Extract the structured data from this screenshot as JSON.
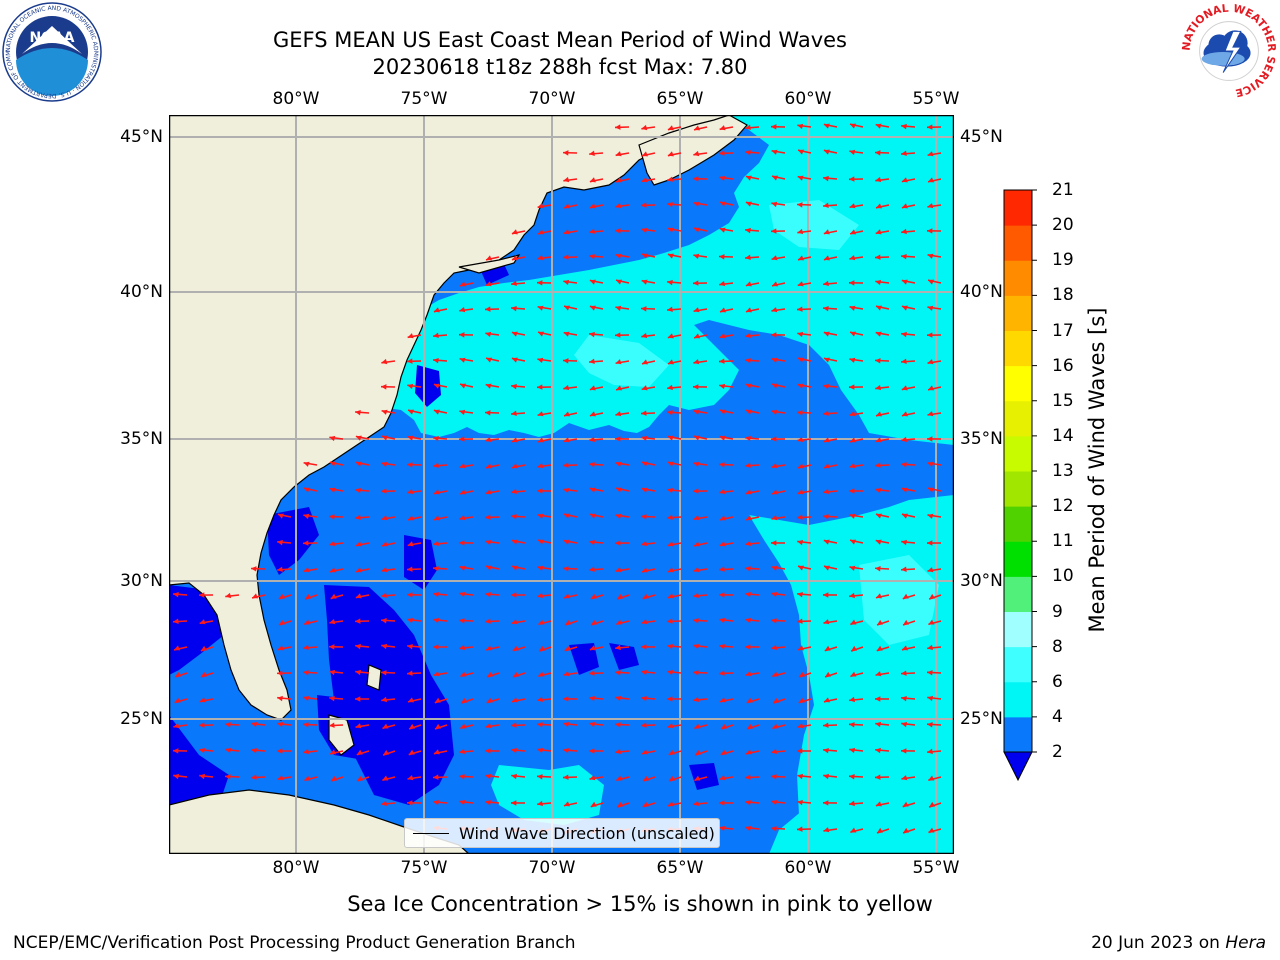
{
  "title": {
    "line1": "GEFS MEAN US East Coast Mean Period of Wind Waves",
    "line2": "20230618 t18z 288h fcst   Max: 7.80"
  },
  "logos": {
    "noaa_text": "NOAA",
    "noaa_ring": "NATIONAL OCEANIC AND ATMOSPHERIC ADMINISTRATION · U.S. DEPARTMENT OF COMMERCE",
    "nws_ring": "NATIONAL WEATHER SERVICE"
  },
  "axes": {
    "lon_labels": [
      "80°W",
      "75°W",
      "70°W",
      "65°W",
      "60°W",
      "55°W"
    ],
    "lat_labels": [
      "45°N",
      "40°N",
      "35°N",
      "30°N",
      "25°N"
    ]
  },
  "map": {
    "extent": {
      "lon": [
        -85,
        -54.5
      ],
      "lat": [
        20.3,
        46
      ]
    },
    "land_color": "#efefdc",
    "layer_colors": {
      "bin_0_2": "#0000ee",
      "bin_2_4": "#0a78fa",
      "bin_4_6": "#00f5f5",
      "bin_6_8": "#40ffff"
    },
    "arrow_color": "#ff1a1a"
  },
  "legend": {
    "label": "Wind Wave Direction (unscaled)"
  },
  "colorbar": {
    "title": "Mean Period of Wind Waves [s]",
    "ticks": [
      "2",
      "4",
      "6",
      "8",
      "9",
      "10",
      "11",
      "12",
      "13",
      "14",
      "15",
      "16",
      "17",
      "18",
      "19",
      "20",
      "21"
    ],
    "colors": [
      "#0a78fa",
      "#00f5f5",
      "#40ffff",
      "#a0ffff",
      "#50f07a",
      "#00e000",
      "#50d200",
      "#a0e600",
      "#c8fa00",
      "#e6f000",
      "#ffff00",
      "#ffd800",
      "#ffb400",
      "#ff8c00",
      "#ff5a00",
      "#ff2800",
      "#ff0000"
    ],
    "extend_color": "#0000ee"
  },
  "footnote": "Sea Ice Concentration > 15% is shown in pink to yellow",
  "credits": {
    "left": "NCEP/EMC/Verification Post Processing Product Generation Branch",
    "right_prefix": "20 Jun 2023 on ",
    "right_host": "Hera"
  }
}
